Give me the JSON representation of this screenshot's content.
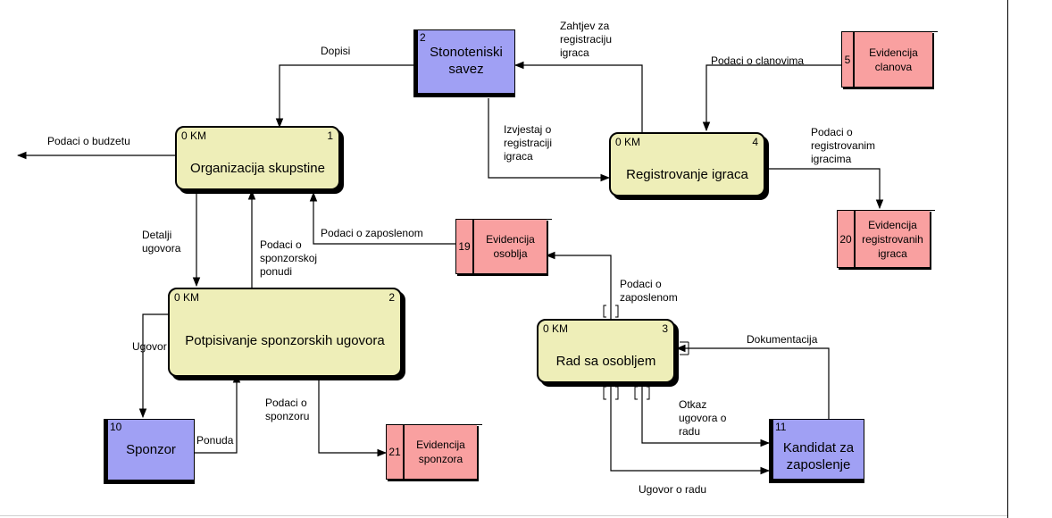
{
  "processes": [
    {
      "key": "p1",
      "id": "0 KM",
      "num": "1",
      "name": "Organizacija skupstine"
    },
    {
      "key": "p2",
      "id": "0 KM",
      "num": "2",
      "name": "Potpisivanje sponzorskih ugovora"
    },
    {
      "key": "p3",
      "id": "0 KM",
      "num": "3",
      "name": "Rad sa osobljem"
    },
    {
      "key": "p4",
      "id": "0 KM",
      "num": "4",
      "name": "Registrovanje igraca"
    }
  ],
  "entities": [
    {
      "key": "e2",
      "num": "2",
      "name": [
        "Stonoteniski",
        "savez"
      ]
    },
    {
      "key": "e10",
      "num": "10",
      "name": [
        "Sponzor"
      ]
    },
    {
      "key": "e11",
      "num": "11",
      "name": [
        "Kandidat za",
        "zaposlenje"
      ]
    }
  ],
  "stores": [
    {
      "key": "s5",
      "num": "5",
      "name": [
        "Evidencija",
        "clanova"
      ]
    },
    {
      "key": "s19",
      "num": "19",
      "name": [
        "Evidencija",
        "osoblja"
      ]
    },
    {
      "key": "s20",
      "num": "20",
      "name": [
        "Evidencija",
        "registrovanih",
        "igraca"
      ]
    },
    {
      "key": "s21",
      "num": "21",
      "name": [
        "Evidencija",
        "sponzora"
      ]
    }
  ],
  "flows": [
    {
      "key": "dopisi",
      "text": [
        "Dopisi"
      ]
    },
    {
      "key": "zahtjev",
      "text": [
        "Zahtjev za",
        "registraciju",
        "igraca"
      ]
    },
    {
      "key": "clanovi",
      "text": [
        "Podaci o clanovima"
      ]
    },
    {
      "key": "budzet",
      "text": [
        "Podaci o budzetu"
      ]
    },
    {
      "key": "izvjestaj",
      "text": [
        "Izvjestaj o",
        "registraciji",
        "igraca"
      ]
    },
    {
      "key": "registrovani",
      "text": [
        "Podaci o",
        "registrovanim",
        "igracima"
      ]
    },
    {
      "key": "detalji",
      "text": [
        "Detalji",
        "ugovora"
      ]
    },
    {
      "key": "ponudi",
      "text": [
        "Podaci o",
        "sponzorskoj",
        "ponudi"
      ]
    },
    {
      "key": "zaposlenom1",
      "text": [
        "Podaci o zaposlenom"
      ]
    },
    {
      "key": "zaposlenom2",
      "text": [
        "Podaci o",
        "zaposlenom"
      ]
    },
    {
      "key": "ugovor",
      "text": [
        "Ugovor"
      ]
    },
    {
      "key": "dokumentacija",
      "text": [
        "Dokumentacija"
      ]
    },
    {
      "key": "sponzoru",
      "text": [
        "Podaci o",
        "sponzoru"
      ]
    },
    {
      "key": "otkaz",
      "text": [
        "Otkaz",
        "ugovora o",
        "radu"
      ]
    },
    {
      "key": "ponuda",
      "text": [
        "Ponuda"
      ]
    },
    {
      "key": "ugovorradu",
      "text": [
        "Ugovor o radu"
      ]
    }
  ],
  "colors": {
    "process_fill": "#eeeeb8",
    "entity_fill": "#a0a0f4",
    "store_fill": "#f9a0a0",
    "line": "#000000"
  }
}
